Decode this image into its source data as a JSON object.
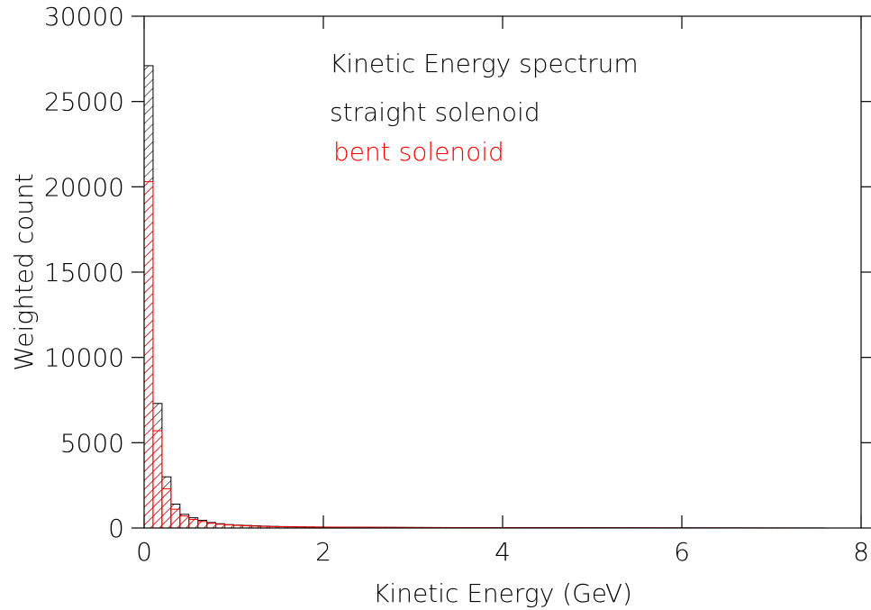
{
  "chart_data": {
    "type": "bar",
    "title": "Kinetic Energy spectrum",
    "xlabel": "Kinetic Energy (GeV)",
    "ylabel": "Weighted count",
    "xlim": [
      0,
      8
    ],
    "ylim": [
      0,
      30000
    ],
    "x_ticks": [
      {
        "value": 0,
        "label": "0"
      },
      {
        "value": 2,
        "label": "2"
      },
      {
        "value": 4,
        "label": "4"
      },
      {
        "value": 6,
        "label": "6"
      },
      {
        "value": 8,
        "label": "8"
      }
    ],
    "y_ticks": [
      {
        "value": 0,
        "label": "0"
      },
      {
        "value": 5000,
        "label": "5000"
      },
      {
        "value": 10000,
        "label": "10000"
      },
      {
        "value": 15000,
        "label": "15000"
      },
      {
        "value": 20000,
        "label": "20000"
      },
      {
        "value": 25000,
        "label": "25000"
      },
      {
        "value": 30000,
        "label": "30000"
      }
    ],
    "grid": false,
    "legend_position": "top-center",
    "bin_width": 0.1,
    "bin_edges_start": 0,
    "series": [
      {
        "name": "straight solenoid",
        "color": "#000000",
        "hatch": "diagonal",
        "values": [
          27100,
          7300,
          3000,
          1400,
          800,
          600,
          450,
          320,
          250,
          200,
          170,
          150,
          130,
          110,
          95,
          85,
          75,
          70,
          65,
          60,
          55,
          52,
          50,
          48,
          46,
          44,
          42,
          40,
          38,
          36,
          34,
          32,
          30,
          29,
          28,
          27,
          26,
          25,
          24,
          23,
          22,
          21,
          20,
          20,
          19,
          19,
          18,
          18,
          17,
          17,
          16,
          16,
          15,
          15,
          14,
          14,
          13,
          13,
          12,
          12,
          11,
          11,
          10,
          10,
          9,
          9,
          8,
          8,
          7,
          7,
          6,
          6,
          5,
          5,
          4,
          4
        ]
      },
      {
        "name": "bent solenoid",
        "color": "#ff0000",
        "hatch": "diagonal",
        "values": [
          20300,
          5700,
          2300,
          1100,
          700,
          500,
          380,
          280,
          220,
          180,
          150,
          130,
          110,
          95,
          85,
          75,
          70,
          65,
          60,
          55,
          50,
          48,
          46,
          44,
          42,
          40,
          38,
          36,
          34,
          32,
          30,
          29,
          28,
          27,
          26,
          25,
          24,
          23,
          22,
          21,
          20,
          20,
          19,
          18,
          18,
          17,
          17,
          16,
          16,
          15,
          15,
          14,
          14,
          13,
          13,
          12,
          12,
          11,
          11,
          10,
          10,
          9,
          9,
          8,
          8,
          7,
          7,
          6,
          6,
          5,
          5,
          4,
          4,
          3,
          3,
          3
        ]
      }
    ]
  }
}
